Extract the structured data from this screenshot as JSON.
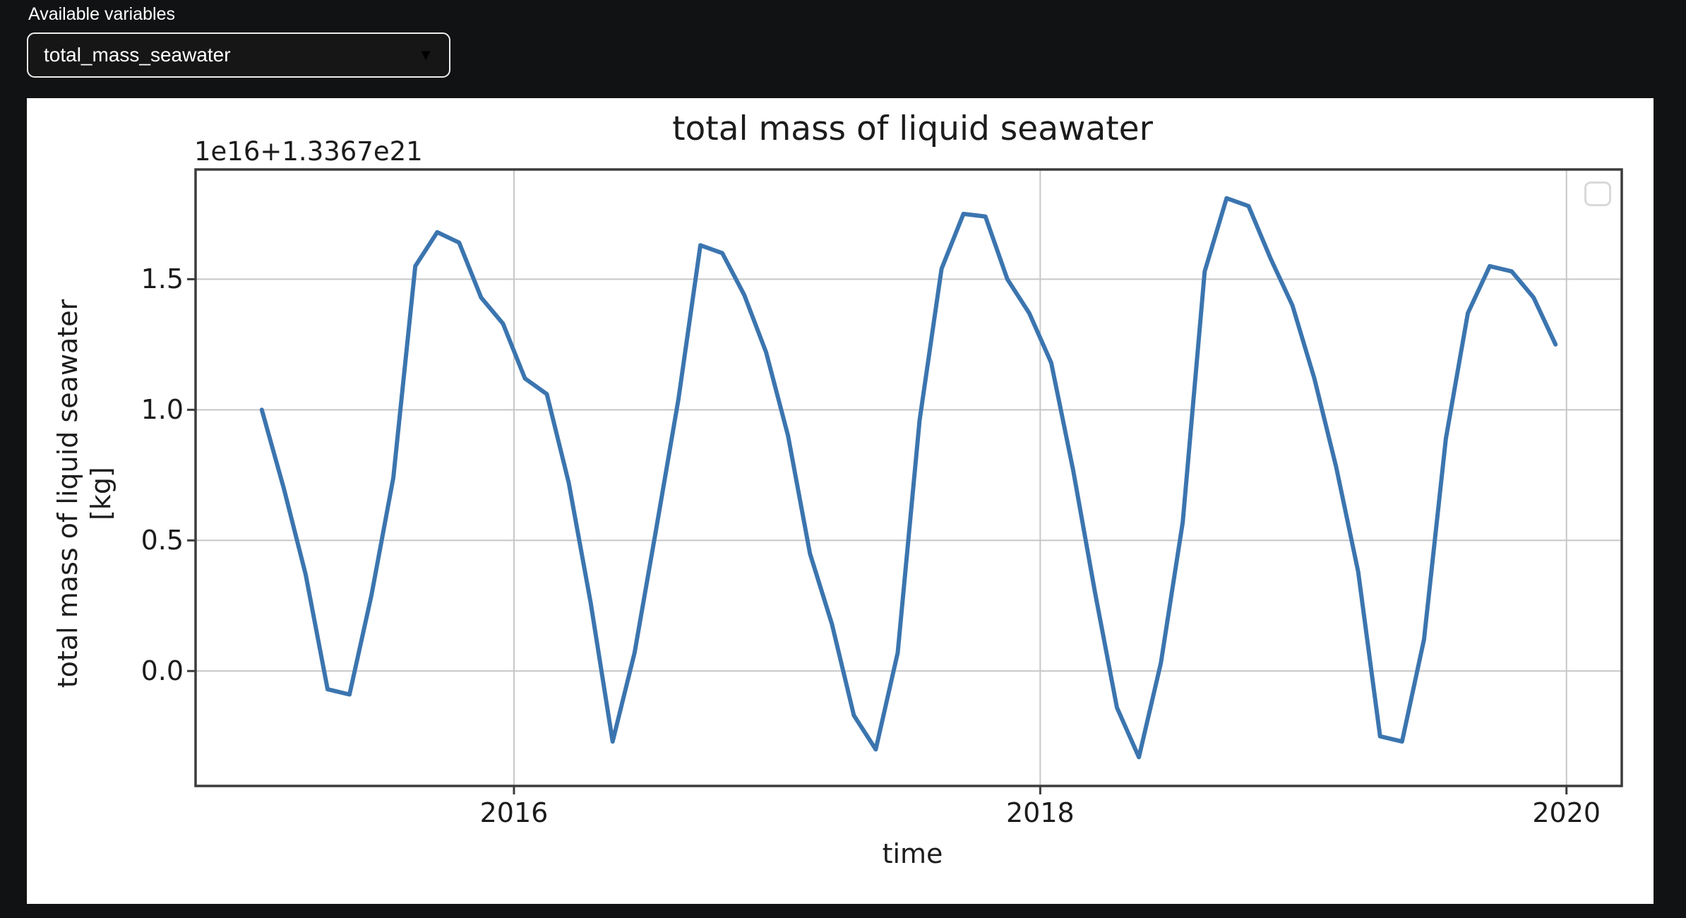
{
  "header": {
    "label": "Available variables",
    "dropdown": {
      "value": "total_mass_seawater",
      "caret_icon": "▼"
    }
  },
  "chart": {
    "title": "total mass of liquid seawater",
    "offset_label": "1e16+1.3367e21",
    "xlabel": "time",
    "ylabel_line1": "total mass of liquid seawater",
    "ylabel_line2": "[kg]",
    "colors": {
      "line": "#3b75af",
      "grid": "#c7c7c7",
      "spine": "#3c3c3c",
      "panel_bg": "#ffffff",
      "page_bg": "#111213",
      "text": "#1c1c1c"
    }
  },
  "chart_data": {
    "type": "line",
    "title": "total mass of liquid seawater",
    "xlabel": "time",
    "ylabel": "total mass of liquid seawater [kg]",
    "y_offset_notation": "1e16+1.3367e21",
    "x_start": "2015-01",
    "frequency": "monthly",
    "grid": true,
    "legend": "empty-box-top-right",
    "xlim": [
      2014.79,
      2020.21
    ],
    "ylim": [
      -0.44,
      1.92
    ],
    "x_ticks": [
      2016,
      2018,
      2020
    ],
    "x_tick_labels": [
      "2016",
      "2018",
      "2020"
    ],
    "y_ticks": [
      0.0,
      0.5,
      1.0,
      1.5
    ],
    "y_tick_labels": [
      "0.0",
      "0.5",
      "1.0",
      "1.5"
    ],
    "series": [
      {
        "name": "total_mass_seawater",
        "values": [
          1.0,
          0.7,
          0.37,
          -0.07,
          -0.09,
          0.29,
          0.74,
          1.55,
          1.68,
          1.64,
          1.43,
          1.33,
          1.12,
          1.06,
          0.72,
          0.26,
          -0.27,
          0.07,
          0.55,
          1.04,
          1.63,
          1.6,
          1.44,
          1.22,
          0.9,
          0.45,
          0.18,
          -0.17,
          -0.3,
          0.07,
          0.96,
          1.54,
          1.75,
          1.74,
          1.5,
          1.37,
          1.18,
          0.77,
          0.3,
          -0.14,
          -0.33,
          0.03,
          0.57,
          1.53,
          1.81,
          1.78,
          1.58,
          1.4,
          1.12,
          0.78,
          0.38,
          -0.25,
          -0.27,
          0.12,
          0.89,
          1.37,
          1.55,
          1.53,
          1.43,
          1.25
        ]
      }
    ]
  }
}
